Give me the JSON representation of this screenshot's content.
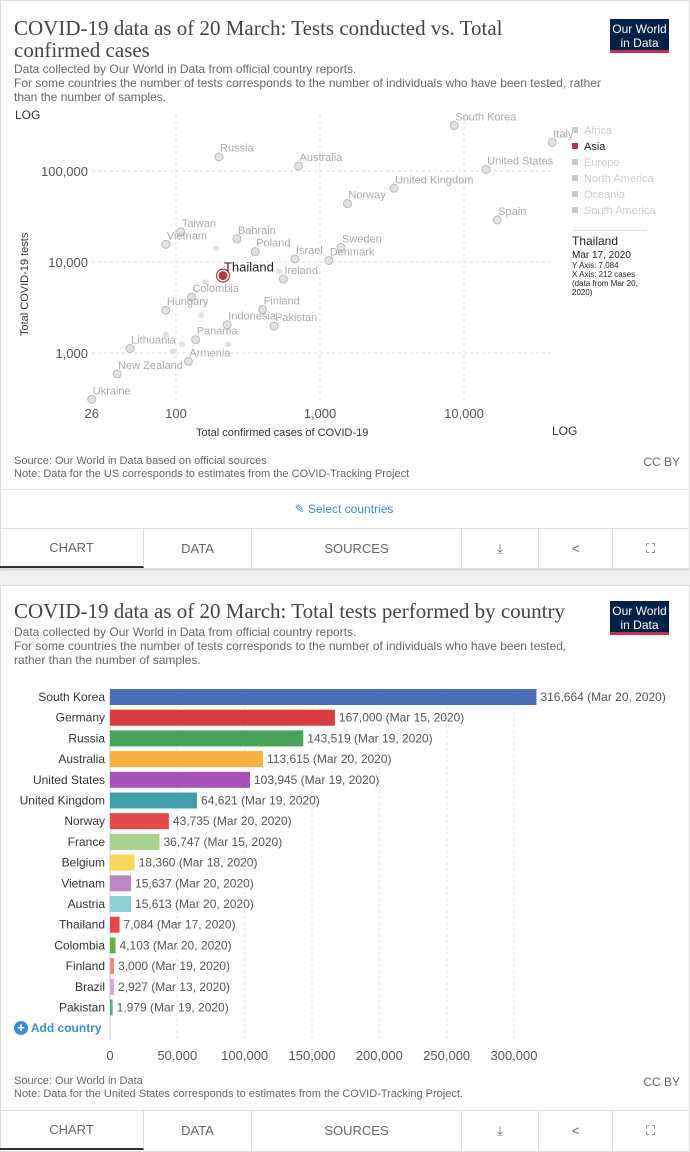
{
  "chart1": {
    "title": "COVID-19 data as of 20 March: Tests conducted vs. Total confirmed cases",
    "subtitle_1": "Data collected by Our World in Data from official country reports.",
    "subtitle_2": "For some countries the number of tests corresponds to the number of individuals who have been tested, rather than the number of samples.",
    "logo": "Our World in Data",
    "source": "Source: Our World in Data based on official sources",
    "note": "Note: Data for the US corresponds to estimates from the COVID-Tracking Project",
    "license": "CC BY",
    "select_countries": "Select countries",
    "tabs": [
      "CHART",
      "DATA",
      "SOURCES"
    ],
    "icons": [
      "download-icon",
      "share-icon",
      "fullscreen-icon"
    ],
    "legend": [
      {
        "name": "Africa",
        "active": false
      },
      {
        "name": "Asia",
        "active": true
      },
      {
        "name": "Europe",
        "active": false
      },
      {
        "name": "North America",
        "active": false
      },
      {
        "name": "Oceania",
        "active": false
      },
      {
        "name": "South America",
        "active": false
      }
    ],
    "tooltip": {
      "country": "Thailand",
      "date": "Mar 17, 2020",
      "y": "Y Axis: 7,084",
      "x": "X Axis: 212 cases",
      "x_note": "(data from Mar 20, 2020)"
    },
    "colors": {
      "highlight": "#b33a4c",
      "muted": "#d9d9d9"
    }
  },
  "chart_data": [
    {
      "type": "scatter",
      "title": "COVID-19 data as of 20 March: Tests conducted vs. Total confirmed cases",
      "xlabel": "Total confirmed cases of COVID-19",
      "ylabel": "Total COVID-19 tests",
      "x_scale": "log",
      "y_scale": "log",
      "x_scale_label": "LOG",
      "y_scale_label": "LOG",
      "xlim": [
        26,
        45000
      ],
      "ylim": [
        280,
        330000
      ],
      "x_ticks": [
        "26",
        "100",
        "1,000",
        "10,000"
      ],
      "x_tick_values": [
        26,
        100,
        1000,
        10000
      ],
      "y_ticks": [
        "100,000",
        "10,000",
        "1,000"
      ],
      "y_tick_values": [
        100000,
        10000,
        1000
      ],
      "grid": true,
      "legend_position": "right",
      "highlight": "Thailand",
      "points": [
        {
          "label": "South Korea",
          "x": 8560,
          "y": 316664
        },
        {
          "label": "Italy",
          "x": 41000,
          "y": 206886
        },
        {
          "label": "Russia",
          "x": 199,
          "y": 143519
        },
        {
          "label": "Australia",
          "x": 709,
          "y": 113615
        },
        {
          "label": "United States",
          "x": 14250,
          "y": 103945
        },
        {
          "label": "United Kingdom",
          "x": 3270,
          "y": 64621
        },
        {
          "label": "Norway",
          "x": 1550,
          "y": 43735
        },
        {
          "label": "Spain",
          "x": 17000,
          "y": 29000
        },
        {
          "label": "Taiwan",
          "x": 108,
          "y": 21400
        },
        {
          "label": "Bahrain",
          "x": 265,
          "y": 18000
        },
        {
          "label": "Vietnam",
          "x": 85,
          "y": 15637
        },
        {
          "label": "Sweden",
          "x": 1400,
          "y": 14500
        },
        {
          "label": "Poland",
          "x": 355,
          "y": 13000
        },
        {
          "label": "Israel",
          "x": 670,
          "y": 10800
        },
        {
          "label": "Denmark",
          "x": 1150,
          "y": 10400
        },
        {
          "label": "Thailand",
          "x": 212,
          "y": 7084
        },
        {
          "label": "Ireland",
          "x": 557,
          "y": 6500
        },
        {
          "label": "Colombia",
          "x": 128,
          "y": 4103
        },
        {
          "label": "Hungary",
          "x": 85,
          "y": 2950
        },
        {
          "label": "Finland",
          "x": 400,
          "y": 3000
        },
        {
          "label": "Indonesia",
          "x": 227,
          "y": 2050
        },
        {
          "label": "Pakistan",
          "x": 480,
          "y": 1979
        },
        {
          "label": "Panama",
          "x": 137,
          "y": 1400
        },
        {
          "label": "Lithuania",
          "x": 48,
          "y": 1120
        },
        {
          "label": "Armenia",
          "x": 122,
          "y": 810
        },
        {
          "label": "New Zealand",
          "x": 39,
          "y": 590
        },
        {
          "label": "Ukraine",
          "x": 26,
          "y": 310
        },
        {
          "label": "",
          "x": 190,
          "y": 14000
        },
        {
          "label": "",
          "x": 160,
          "y": 6000
        },
        {
          "label": "",
          "x": 150,
          "y": 2600
        },
        {
          "label": "",
          "x": 85,
          "y": 1600
        },
        {
          "label": "",
          "x": 95,
          "y": 1050
        },
        {
          "label": "",
          "x": 110,
          "y": 1250
        },
        {
          "label": "",
          "x": 230,
          "y": 1250
        },
        {
          "label": "",
          "x": 520,
          "y": 7900
        }
      ]
    },
    {
      "type": "bar",
      "orientation": "horizontal",
      "title": "COVID-19 data as of 20 March: Total tests performed by country",
      "xlim": [
        0,
        330000
      ],
      "x_ticks": [
        "0",
        "50,000",
        "100,000",
        "150,000",
        "200,000",
        "250,000",
        "300,000"
      ],
      "x_tick_values": [
        0,
        50000,
        100000,
        150000,
        200000,
        250000,
        300000
      ],
      "grid": true,
      "categories": [
        "South Korea",
        "Germany",
        "Russia",
        "Australia",
        "United States",
        "United Kingdom",
        "Norway",
        "France",
        "Belgium",
        "Vietnam",
        "Austria",
        "Thailand",
        "Colombia",
        "Finland",
        "Brazil",
        "Pakistan"
      ],
      "values": [
        316664,
        167000,
        143519,
        113615,
        103945,
        64621,
        43735,
        36747,
        18360,
        15637,
        15613,
        7084,
        4103,
        3000,
        2927,
        1979
      ],
      "value_labels": [
        "316,664 (Mar 20, 2020)",
        "167,000 (Mar 15, 2020)",
        "143,519 (Mar 19, 2020)",
        "113,615 (Mar 20, 2020)",
        "103,945 (Mar 19, 2020)",
        "64,621 (Mar 19, 2020)",
        "43,735 (Mar 20, 2020)",
        "36,747 (Mar 15, 2020)",
        "18,360 (Mar 18, 2020)",
        "15,637 (Mar 20, 2020)",
        "15,613 (Mar 20, 2020)",
        "7,084 (Mar 17, 2020)",
        "4,103 (Mar 20, 2020)",
        "3,000 (Mar 19, 2020)",
        "2,927 (Mar 13, 2020)",
        "1,979 (Mar 19, 2020)"
      ],
      "colors": [
        "#4c6db7",
        "#d73c42",
        "#47a25a",
        "#f9b141",
        "#a652ba",
        "#3f9ea9",
        "#e5484a",
        "#a9d18e",
        "#fbd75b",
        "#b98ac2",
        "#8fd0d6",
        "#e5484a",
        "#6ab04c",
        "#ec8c70",
        "#d8a6d4",
        "#6ba585"
      ]
    }
  ],
  "chart2": {
    "title": "COVID-19 data as of 20 March: Total tests performed by country",
    "subtitle_1": "Data collected by Our World in Data from official country reports.",
    "subtitle_2": "For some countries the number of tests corresponds to the number of individuals who have been tested, rather than the number of samples.",
    "logo": "Our World in Data",
    "add_country": "Add country",
    "source": "Source: Our World in Data",
    "note": "Note: Data for the United States corresponds to estimates from the COVID-Tracking Project.",
    "license": "CC BY",
    "tabs": [
      "CHART",
      "DATA",
      "SOURCES"
    ]
  }
}
